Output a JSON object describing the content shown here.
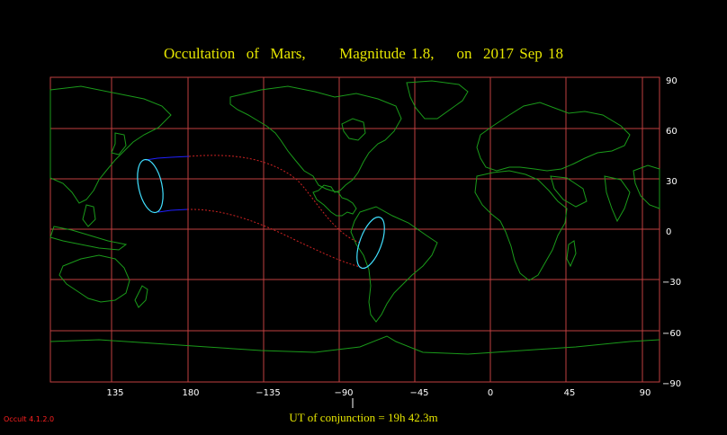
{
  "title": "Occultation  of  Mars,      Magnitude 1.8,    on  2017 Sep 18",
  "footer": {
    "conjunction_label": "UT of conjunction = 19h 42.3m",
    "version": "Occult 4.1.2.0"
  },
  "axes": {
    "x_ticks": [
      "135",
      "180",
      "−135",
      "−90",
      "−45",
      "0",
      "45",
      "90"
    ],
    "y_ticks": [
      "90",
      "60",
      "30",
      "0",
      "−30",
      "−60",
      "−90"
    ]
  },
  "colors": {
    "background": "#000000",
    "grid": "#c04040",
    "coastline": "#1a9a1a",
    "title": "#e6e600",
    "track_north": "#2020ff",
    "track_south": "#cc2222",
    "visibility_ellipse": "#40e0ff"
  }
}
